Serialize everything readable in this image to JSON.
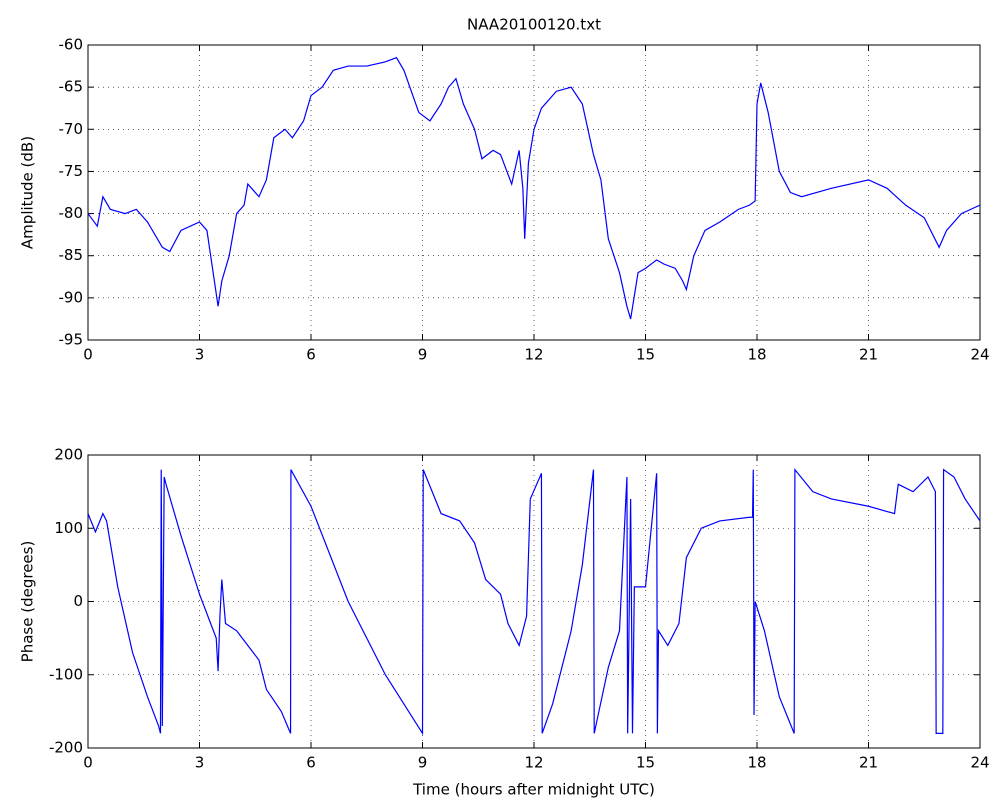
{
  "chart_data": [
    {
      "type": "line",
      "title": "NAA20100120.txt",
      "y_label": "Amplitude (dB)",
      "color": "#0000ff",
      "grid": true,
      "xlim": [
        0,
        24
      ],
      "xticks": [
        0,
        3,
        6,
        9,
        12,
        15,
        18,
        21,
        24
      ],
      "ylim": [
        -95,
        -60
      ],
      "yticks": [
        -95,
        -90,
        -85,
        -80,
        -75,
        -70,
        -65,
        -60
      ],
      "x": [
        0,
        0.25,
        0.4,
        0.6,
        1,
        1.3,
        1.6,
        2,
        2.2,
        2.5,
        3,
        3.2,
        3.4,
        3.5,
        3.6,
        3.8,
        4,
        4.2,
        4.3,
        4.6,
        4.8,
        5,
        5.3,
        5.5,
        5.8,
        6,
        6.3,
        6.6,
        7,
        7.5,
        8,
        8.3,
        8.5,
        8.9,
        9.2,
        9.5,
        9.7,
        9.9,
        10.1,
        10.4,
        10.6,
        10.9,
        11.1,
        11.4,
        11.6,
        11.7,
        11.75,
        11.85,
        12,
        12.2,
        12.6,
        13,
        13.3,
        13.6,
        13.8,
        14,
        14.3,
        14.5,
        14.6,
        14.8,
        15,
        15.3,
        15.5,
        15.8,
        16,
        16.1,
        16.3,
        16.6,
        17,
        17.5,
        17.8,
        17.95,
        18,
        18.1,
        18.3,
        18.6,
        18.9,
        19.2,
        20,
        21,
        21.5,
        22,
        22.5,
        22.9,
        23.1,
        23.5,
        24
      ],
      "values": [
        -80,
        -81.5,
        -78,
        -79.5,
        -80,
        -79.5,
        -81,
        -84,
        -84.5,
        -82,
        -81,
        -82,
        -88,
        -91,
        -88,
        -85,
        -80,
        -79,
        -76.5,
        -78,
        -76,
        -71,
        -70,
        -71,
        -69,
        -66,
        -65,
        -63,
        -62.5,
        -62.5,
        -62,
        -61.5,
        -63,
        -68,
        -69,
        -67,
        -65,
        -64,
        -67,
        -70,
        -73.5,
        -72.5,
        -73,
        -76.5,
        -72.5,
        -77,
        -83,
        -74,
        -70,
        -67.5,
        -65.5,
        -65,
        -67,
        -73,
        -76,
        -83,
        -87,
        -91,
        -92.5,
        -87,
        -86.5,
        -85.5,
        -86,
        -86.5,
        -88,
        -89,
        -85,
        -82,
        -81,
        -79.5,
        -79,
        -78.5,
        -67,
        -64.5,
        -68,
        -75,
        -77.5,
        -78,
        -77,
        -76,
        -77,
        -79,
        -80.5,
        -84,
        -82,
        -80,
        -79
      ]
    },
    {
      "type": "line",
      "x_label": "Time (hours after midnight UTC)",
      "y_label": "Phase (degrees)",
      "color": "#0000ff",
      "grid": true,
      "xlim": [
        0,
        24
      ],
      "xticks": [
        0,
        3,
        6,
        9,
        12,
        15,
        18,
        21,
        24
      ],
      "ylim": [
        -200,
        200
      ],
      "yticks": [
        -200,
        -100,
        0,
        100,
        200
      ],
      "x": [
        0,
        0.2,
        0.4,
        0.5,
        0.8,
        1.2,
        1.6,
        1.9,
        1.95,
        1.97,
        2.0,
        2.05,
        2.1,
        2.5,
        3,
        3.3,
        3.45,
        3.5,
        3.55,
        3.6,
        3.7,
        4,
        4.3,
        4.6,
        4.8,
        5.2,
        5.45,
        5.46,
        6,
        7,
        8,
        9,
        9.02,
        9.5,
        10,
        10.4,
        10.7,
        11.1,
        11.3,
        11.6,
        11.8,
        11.9,
        12.2,
        12.22,
        12.5,
        13,
        13.3,
        13.6,
        13.62,
        14,
        14.3,
        14.5,
        14.52,
        14.6,
        14.65,
        14.7,
        15,
        15.3,
        15.32,
        15.35,
        15.6,
        15.9,
        16.1,
        16.5,
        17,
        17.8,
        17.88,
        17.9,
        17.92,
        17.95,
        18.2,
        18.6,
        19,
        19.02,
        19.5,
        20,
        21,
        21.7,
        21.8,
        22.2,
        22.6,
        22.8,
        22.82,
        23.0,
        23.02,
        23.3,
        23.6,
        24
      ],
      "values": [
        120,
        95,
        120,
        110,
        20,
        -70,
        -130,
        -170,
        -180,
        180,
        -170,
        170,
        160,
        90,
        10,
        -30,
        -50,
        -95,
        -20,
        30,
        -30,
        -40,
        -60,
        -80,
        -120,
        -150,
        -180,
        180,
        130,
        0,
        -100,
        -180,
        180,
        120,
        110,
        80,
        30,
        10,
        -30,
        -60,
        -20,
        140,
        175,
        -180,
        -140,
        -40,
        50,
        180,
        -180,
        -90,
        -40,
        170,
        -180,
        140,
        -180,
        20,
        20,
        175,
        -180,
        -40,
        -60,
        -30,
        60,
        100,
        110,
        115,
        115,
        180,
        -155,
        0,
        -40,
        -130,
        -180,
        180,
        150,
        140,
        130,
        120,
        160,
        150,
        170,
        150,
        -180,
        -180,
        180,
        170,
        140,
        110
      ]
    }
  ]
}
